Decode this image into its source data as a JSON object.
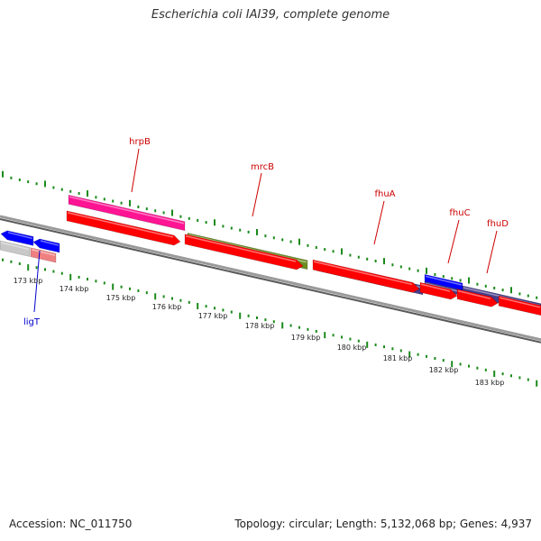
{
  "header": {
    "title": "Escherichia coli IAI39, complete genome"
  },
  "footer": {
    "accession": "Accession: NC_011750",
    "summary": "Topology: circular; Length: 5,132,068 bp; Genes: 4,937"
  },
  "colors": {
    "backbone": "#7a7a7a",
    "tick": "#1a8a1a",
    "red_cds": "#ff0000",
    "magenta_gene": "#ff1493",
    "olive_gene": "#6b8e23",
    "purple_gene": "#483d8b",
    "blue_gene": "#0000ff",
    "grey_gene": "#c8c8c8",
    "pink_gene": "#f08080",
    "label_red": "#cc0000",
    "label_blue": "#0000cc"
  },
  "map": {
    "kbp_labels": [
      "173 kbp",
      "174 kbp",
      "175 kbp",
      "176 kbp",
      "177 kbp",
      "178 kbp",
      "179 kbp",
      "180 kbp",
      "181 kbp",
      "182 kbp",
      "183 kbp"
    ],
    "genes_top": [
      {
        "name": "hrpB",
        "color": "magenta"
      },
      {
        "name": "mrcB",
        "color": "olive"
      },
      {
        "name": "fhuA",
        "color": "purple"
      },
      {
        "name": "fhuC",
        "color": "blue"
      },
      {
        "name": "fhuD",
        "color": "purple"
      }
    ],
    "genes_bottom": [
      {
        "name": "ligT",
        "color": "pink"
      }
    ]
  }
}
